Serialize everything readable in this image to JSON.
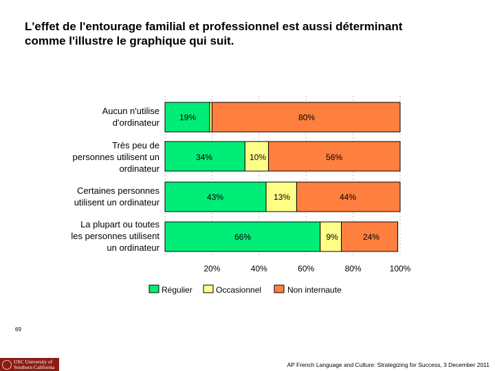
{
  "slide": {
    "title_line1": "L'effet de l'entourage familial et professionnel est aussi déterminant",
    "title_line2": "comme l'illustre le graphique qui suit.",
    "slide_number": "69",
    "logo_line1": "USC University of",
    "logo_line2": "Southern California",
    "footer": "AP French Language and Culture: Strategizing for Success, 3 December 2011"
  },
  "colors": {
    "regulier": "#00ee77",
    "occasionnel": "#ffff88",
    "non_internaute": "#ff7f3f",
    "border": "#000000",
    "gridline": "#888888",
    "logo_bg": "#8c1c13"
  },
  "chart_data": {
    "type": "bar",
    "orientation": "horizontal",
    "stacked": true,
    "categories": [
      [
        "Aucun n'utilise",
        "d'ordinateur"
      ],
      [
        "Très peu de",
        "personnes utilisent un",
        "ordinateur"
      ],
      [
        "Certaines personnes",
        "utilisent un ordinateur"
      ],
      [
        "La plupart ou toutes",
        "les personnes utilisent",
        "un ordinateur"
      ]
    ],
    "series": [
      {
        "name": "Régulier",
        "values": [
          19,
          34,
          43,
          66
        ],
        "labels": [
          "19%",
          "34%",
          "43%",
          "66%"
        ]
      },
      {
        "name": "Occasionnel",
        "values": [
          1,
          10,
          13,
          9
        ],
        "labels": [
          "",
          "10%",
          "13%",
          "9%"
        ]
      },
      {
        "name": "Non internaute",
        "values": [
          80,
          56,
          44,
          24
        ],
        "labels": [
          "80%",
          "56%",
          "44%",
          "24%"
        ]
      }
    ],
    "xlim": [
      0,
      100
    ],
    "xticks": [
      20,
      40,
      60,
      80,
      100
    ],
    "xtick_labels": [
      "20%",
      "40%",
      "60%",
      "80%",
      "100%"
    ],
    "grid": true,
    "legend_position": "bottom"
  }
}
